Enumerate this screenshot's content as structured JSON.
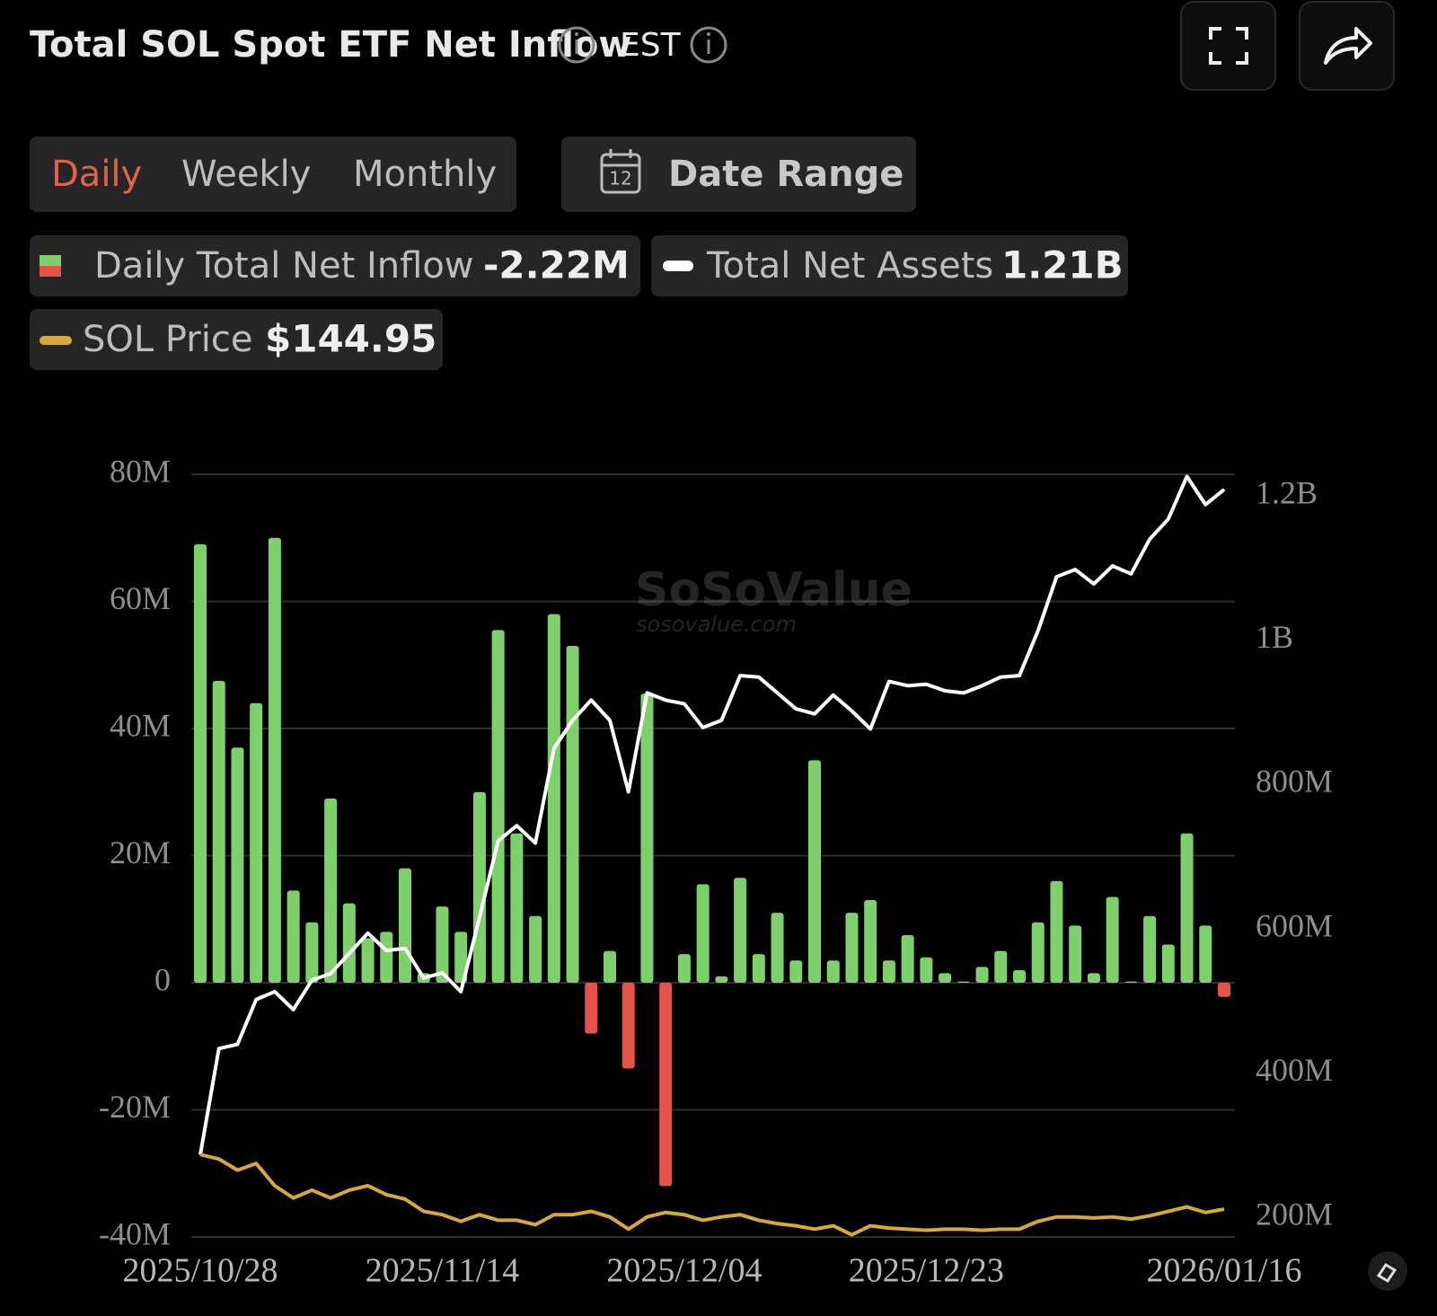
{
  "header": {
    "title": "Total SOL Spot ETF Net Inflow",
    "timezone": "EST",
    "tabs": [
      "Daily",
      "Weekly",
      "Monthly"
    ],
    "date_range": "Date Range",
    "calendar_day": "12",
    "watermark": "SoSoValue",
    "watermark_url": "sosovalue.com"
  },
  "chart_data": {
    "type": "bar",
    "categories": [
      "2025/10/28",
      null,
      null,
      null,
      null,
      null,
      null,
      null,
      null,
      null,
      null,
      null,
      null,
      "2025/11/14",
      null,
      null,
      null,
      null,
      null,
      null,
      null,
      null,
      null,
      null,
      null,
      null,
      "2025/12/04",
      null,
      null,
      null,
      null,
      null,
      null,
      null,
      null,
      null,
      null,
      null,
      null,
      "2025/12/23",
      null,
      null,
      null,
      null,
      null,
      null,
      null,
      null,
      null,
      null,
      null,
      null,
      null,
      null,
      null,
      "2026/01/16"
    ],
    "series": [
      {
        "name": "Daily Total Net Inflow",
        "type": "bar",
        "latest_label": "-2.22M",
        "color": "#7dd06b",
        "negative_color": "#e5534b",
        "values": [
          69000000,
          47500000,
          37000000,
          44000000,
          70000000,
          14500000,
          9500000,
          29000000,
          12500000,
          7000000,
          8000000,
          18000000,
          1500000,
          12000000,
          8000000,
          30000000,
          55500000,
          23500000,
          10500000,
          58000000,
          53000000,
          -8000000,
          5000000,
          -13500000,
          45500000,
          -32000000,
          4500000,
          15500000,
          1000000,
          16500000,
          4500000,
          11000000,
          3500000,
          35000000,
          3500000,
          11000000,
          13000000,
          3500000,
          7500000,
          4000000,
          1500000,
          200000,
          2500000,
          5000000,
          2000000,
          9500000,
          16000000,
          9000000,
          1500000,
          13500000,
          200000,
          10500000,
          6000000,
          23500000,
          9000000,
          -2220000
        ]
      },
      {
        "name": "Total Net Assets",
        "type": "line",
        "axis": "y2",
        "latest_label": "1.21B",
        "color": "#ffffff",
        "values": [
          287000000,
          434000000,
          440000000,
          502000000,
          513000000,
          488000000,
          529000000,
          538000000,
          566000000,
          594000000,
          570000000,
          573000000,
          532000000,
          539000000,
          513000000,
          616000000,
          722000000,
          743000000,
          719000000,
          850000000,
          889000000,
          917000000,
          889000000,
          790000000,
          927000000,
          917000000,
          912000000,
          879000000,
          889000000,
          951000000,
          949000000,
          927000000,
          905000000,
          898000000,
          924000000,
          902000000,
          877000000,
          943000000,
          937000000,
          939000000,
          930000000,
          927000000,
          937000000,
          949000000,
          951000000,
          1013000000,
          1088000000,
          1098000000,
          1078000000,
          1103000000,
          1092000000,
          1140000000,
          1168000000,
          1227000000,
          1188000000,
          1209000000
        ]
      },
      {
        "name": "SOL Price",
        "type": "line",
        "axis": "y3",
        "latest_label": "$144.95",
        "color": "#d9a83d",
        "values": [
          194,
          190,
          180,
          186,
          166,
          155,
          162,
          155,
          162,
          166,
          158,
          154,
          143,
          140,
          134,
          140,
          135,
          135,
          131,
          140,
          140,
          143,
          138,
          127,
          138,
          142,
          140,
          135,
          138,
          140,
          135,
          132,
          130,
          127,
          130,
          122,
          130,
          128,
          127,
          126,
          127,
          127,
          126,
          127,
          127,
          134,
          138,
          138,
          137,
          138,
          136,
          139,
          143,
          147,
          142,
          144.95
        ]
      }
    ],
    "ylim": [
      -40000000,
      80000000
    ],
    "yticks": [
      {
        "value": 80000000,
        "label": "80M"
      },
      {
        "value": 60000000,
        "label": "60M"
      },
      {
        "value": 40000000,
        "label": "40M"
      },
      {
        "value": 20000000,
        "label": "20M"
      },
      0,
      {
        "value": -20000000,
        "label": "-20M"
      },
      {
        "value": -40000000,
        "label": "-40M"
      }
    ],
    "y2lim": [
      173000000,
      1230000000
    ],
    "y2ticks": [
      {
        "value": 200000000,
        "label": "200M"
      },
      {
        "value": 400000000,
        "label": "400M"
      },
      {
        "value": 600000000,
        "label": "600M"
      },
      {
        "value": 800000000,
        "label": "800M"
      },
      {
        "value": 1000000000,
        "label": "1B"
      },
      {
        "value": 1200000000,
        "label": "1.2B"
      }
    ],
    "y3lim": [
      120,
      805
    ],
    "grid": true
  }
}
